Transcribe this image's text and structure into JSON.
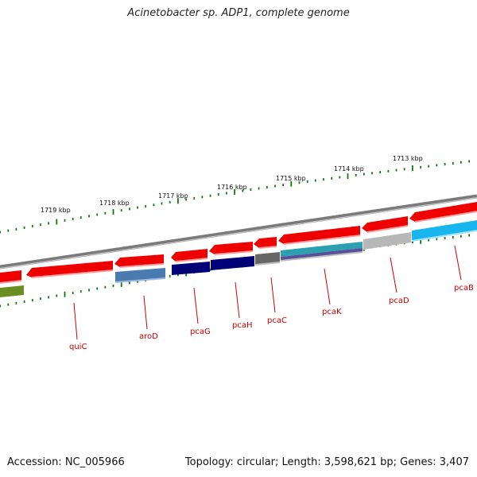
{
  "title": "Acinetobacter sp. ADP1, complete genome",
  "footer": {
    "accession": "Accession: NC_005966",
    "summary": "Topology: circular; Length: 3,598,621 bp; Genes: 3,407"
  },
  "kbp_labels": [
    "1719 kbp",
    "1718 kbp",
    "1717 kbp",
    "1716 kbp",
    "1715 kbp",
    "1714 kbp",
    "1713 kbp"
  ],
  "gene_labels": [
    "quiC",
    "aroD",
    "pcaG",
    "pcaH",
    "pcaC",
    "pcaK",
    "pcaD",
    "pcaB"
  ],
  "colors": {
    "forward_gene": "#ee0000",
    "backbone": "#7a7a7a",
    "tick": "#117711",
    "label": "#cc0000",
    "aroD": "#4a7bb0",
    "pcaG": "#000077",
    "pcaH": "#000077",
    "pcaC": "#666666",
    "pcaK": "#2aa0b0",
    "pcaD": "#b8b8b8",
    "pcaB": "#19b5ee",
    "reverse_left": "#6b8e23"
  }
}
